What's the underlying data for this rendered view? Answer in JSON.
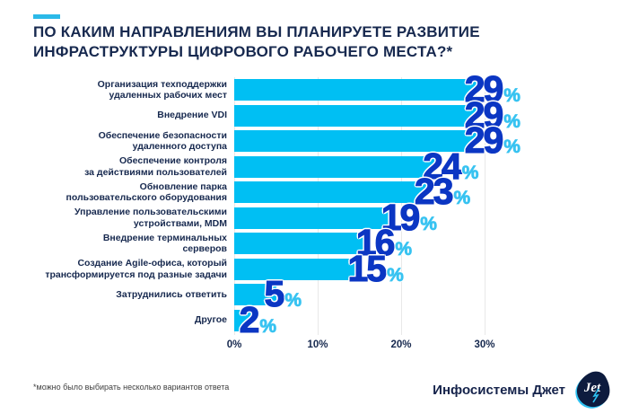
{
  "page": {
    "title": "ПО КАКИМ НАПРАВЛЕНИЯМ ВЫ ПЛАНИРУЕТЕ РАЗВИТИЕ\nИНФРАСТРУКТУРЫ ЦИФРОВОГО РАБОЧЕГО МЕСТА?*",
    "accent_color": "#2BB9E8"
  },
  "chart_data": {
    "type": "bar",
    "orientation": "horizontal",
    "title": "ПО КАКИМ НАПРАВЛЕНИЯМ ВЫ ПЛАНИРУЕТЕ РАЗВИТИЕ ИНФРАСТРУКТУРЫ ЦИФРОВОГО РАБОЧЕГО МЕСТА?*",
    "categories": [
      "Организация техподдержки\nудаленных рабочих мест",
      "Внедрение VDI",
      "Обеспечение безопасности\nудаленного доступа",
      "Обеспечение контроля\nза действиями пользователей",
      "Обновление парка\nпользовательского оборудования",
      "Управление пользовательскими\nустройствами, MDM",
      "Внедрение терминальных\nсерверов",
      "Создание Agile-офиса, который\nтрансформируется под разные задачи",
      "Затруднились ответить",
      "Другое"
    ],
    "values": [
      29,
      29,
      29,
      24,
      23,
      19,
      16,
      15,
      5,
      2
    ],
    "unit": "%",
    "x_ticks": [
      "0%",
      "10%",
      "20%",
      "30%"
    ],
    "x_tick_values": [
      0,
      10,
      20,
      30
    ],
    "xlim": [
      0,
      30
    ],
    "grid": true,
    "legend": false,
    "colors": {
      "bar": "#00BFF3",
      "value_number": "#0B36C3",
      "value_percent": "#38C3F1",
      "grid_line": "#E8E8E8",
      "label_text": "#17294F"
    }
  },
  "footer": {
    "footnote": "*можно было выбирать несколько вариантов ответа",
    "brand": "Инфосистемы Джет",
    "logo_text": "Jet"
  }
}
